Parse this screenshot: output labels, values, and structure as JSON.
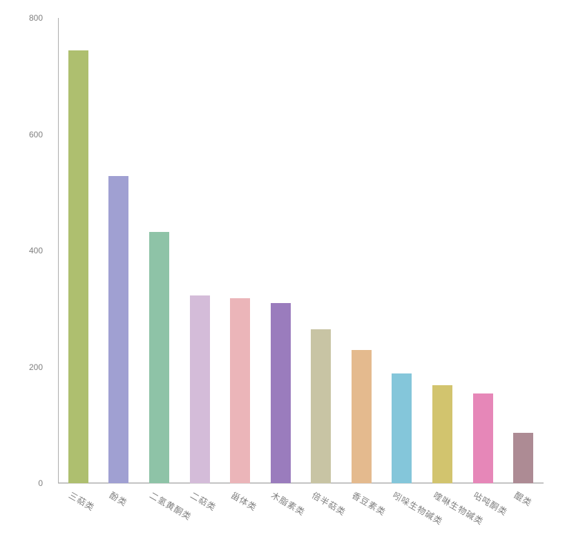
{
  "chart_data": {
    "type": "bar",
    "title": "",
    "xlabel": "",
    "ylabel": "",
    "categories": [
      "三萜类",
      "酚类",
      "二氢黄酮类",
      "二萜类",
      "甾体类",
      "木脂素类",
      "倍半萜类",
      "香豆素类",
      "吲哚生物碱类",
      "喹啉生物碱类",
      "呫吨酮类",
      "醌类"
    ],
    "values": [
      744,
      528,
      432,
      323,
      318,
      310,
      265,
      229,
      189,
      169,
      154,
      87
    ],
    "bar_colors": [
      "#aebf6f",
      "#a0a0d2",
      "#8ec3a7",
      "#d4bcd9",
      "#ebb5b9",
      "#9a7cbd",
      "#c8c4a4",
      "#e4ba8e",
      "#84c6da",
      "#d2c46e",
      "#e687b8",
      "#ad8b94"
    ],
    "ylim": [
      0,
      800
    ],
    "yticks": [
      0,
      200,
      400,
      600,
      800
    ],
    "grid": false,
    "legend": false,
    "x_label_rotation_deg": 30,
    "axis_color": "#ababab",
    "tick_label_color": "#7f7f7f",
    "background_color": "#ffffff"
  }
}
